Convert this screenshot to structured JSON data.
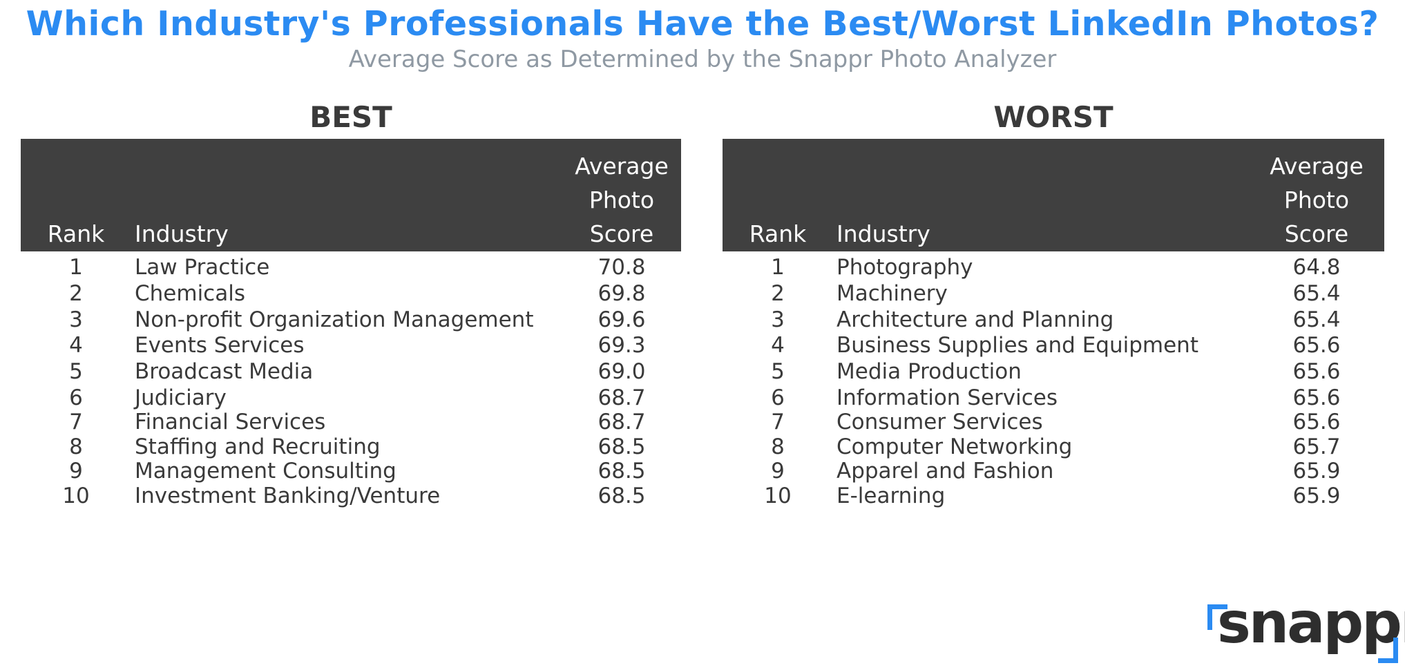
{
  "title": "Which Industry's Professionals Have the Best/Worst LinkedIn Photos?",
  "subtitle": "Average Score as Determined by the Snappr Photo Analyzer",
  "logo_text": "snappr",
  "colors": {
    "title": "#2b8bf2",
    "subtitle": "#8f99a3",
    "header_bg": "#404040",
    "header_text": "#ffffff",
    "text": "#3a3a3a",
    "logo_accent": "#2b8bf2"
  },
  "chart_data": [
    {
      "type": "table",
      "title": "BEST",
      "columns": [
        "Rank",
        "Industry",
        "Average Photo Score"
      ],
      "header": {
        "rank": "Rank",
        "industry": "Industry",
        "score_line1": "Average",
        "score_line2": "Photo",
        "score_line3": "Score"
      },
      "rows": [
        {
          "rank": "1",
          "industry": "Law Practice",
          "score": "70.8"
        },
        {
          "rank": "2",
          "industry": "Chemicals",
          "score": "69.8"
        },
        {
          "rank": "3",
          "industry": "Non-profit Organization Management",
          "score": "69.6"
        },
        {
          "rank": "4",
          "industry": "Events Services",
          "score": "69.3"
        },
        {
          "rank": "5",
          "industry": "Broadcast Media",
          "score": "69.0"
        },
        {
          "rank": "6",
          "industry": "Judiciary",
          "score": "68.7"
        },
        {
          "rank": "7",
          "industry": "Financial Services",
          "score": "68.7"
        },
        {
          "rank": "8",
          "industry": "Staffing and Recruiting",
          "score": "68.5"
        },
        {
          "rank": "9",
          "industry": "Management Consulting",
          "score": "68.5"
        },
        {
          "rank": "10",
          "industry": "Investment Banking/Venture",
          "score": "68.5"
        }
      ]
    },
    {
      "type": "table",
      "title": "WORST",
      "columns": [
        "Rank",
        "Industry",
        "Average Photo Score"
      ],
      "header": {
        "rank": "Rank",
        "industry": "Industry",
        "score_line1": "Average",
        "score_line2": "Photo",
        "score_line3": "Score"
      },
      "rows": [
        {
          "rank": "1",
          "industry": "Photography",
          "score": "64.8"
        },
        {
          "rank": "2",
          "industry": "Machinery",
          "score": "65.4"
        },
        {
          "rank": "3",
          "industry": "Architecture and Planning",
          "score": "65.4"
        },
        {
          "rank": "4",
          "industry": "Business Supplies and Equipment",
          "score": "65.6"
        },
        {
          "rank": "5",
          "industry": "Media Production",
          "score": "65.6"
        },
        {
          "rank": "6",
          "industry": "Information Services",
          "score": "65.6"
        },
        {
          "rank": "7",
          "industry": "Consumer Services",
          "score": "65.6"
        },
        {
          "rank": "8",
          "industry": "Computer Networking",
          "score": "65.7"
        },
        {
          "rank": "9",
          "industry": "Apparel and Fashion",
          "score": "65.9"
        },
        {
          "rank": "10",
          "industry": "E-learning",
          "score": "65.9"
        }
      ]
    }
  ]
}
